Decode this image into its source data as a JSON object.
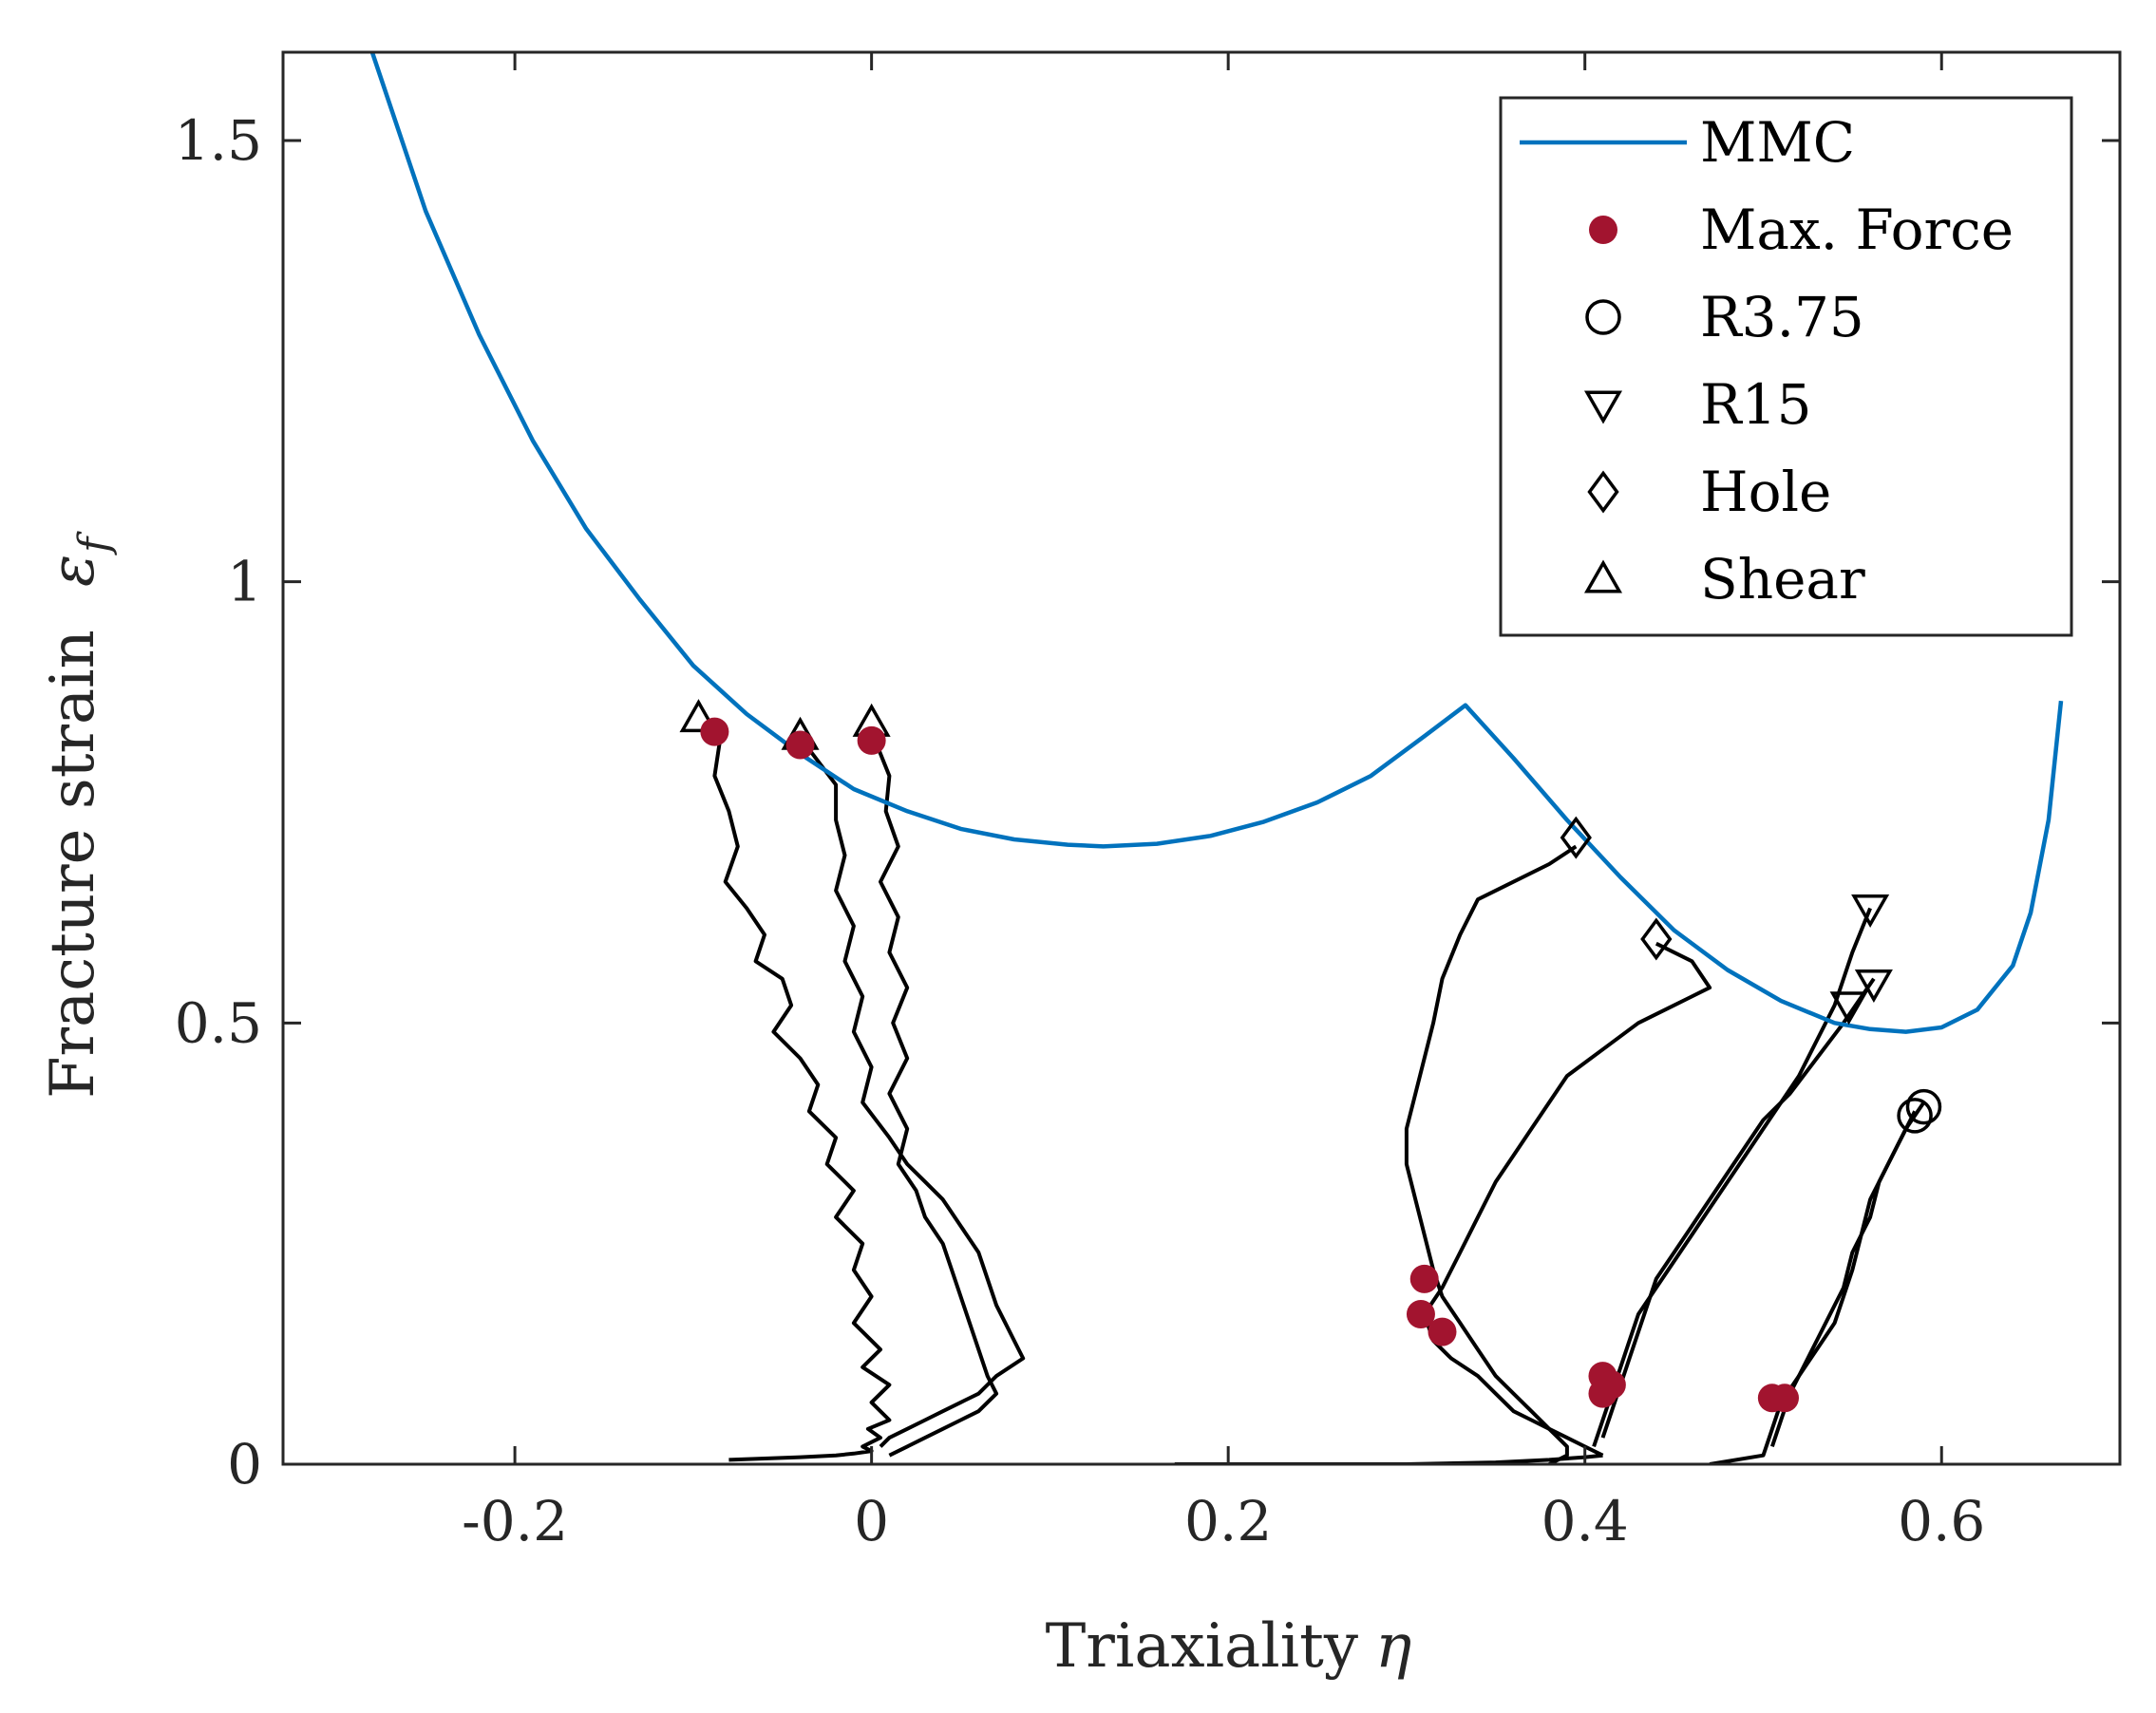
{
  "chart_data": {
    "type": "line",
    "title": "",
    "xlabel": "Triaxiality",
    "xlabel_symbol": "η",
    "ylabel": "Fracture strain",
    "ylabel_symbol": "ε",
    "ylabel_subscript": "f",
    "xlim": [
      -0.33,
      0.7
    ],
    "ylim": [
      0,
      1.6
    ],
    "xticks": [
      -0.2,
      0,
      0.2,
      0.4,
      0.6
    ],
    "xtick_labels": [
      "-0.2",
      "0",
      "0.2",
      "0.4",
      "0.6"
    ],
    "yticks": [
      0,
      0.5,
      1,
      1.5
    ],
    "ytick_labels": [
      "0",
      "0.5",
      "1",
      "1.5"
    ],
    "grid": false,
    "legend_position": "top-right",
    "colors": {
      "mmc": "#0072BD",
      "max_force": "#A2142F",
      "paths": "#000000",
      "axes": "#262626"
    },
    "legend": [
      {
        "label": "MMC",
        "marker": "line"
      },
      {
        "label": "Max. Force",
        "marker": "filled-circle"
      },
      {
        "label": "R3.75",
        "marker": "circle"
      },
      {
        "label": "R15",
        "marker": "triangle-down"
      },
      {
        "label": "Hole",
        "marker": "diamond"
      },
      {
        "label": "Shear",
        "marker": "triangle-up"
      }
    ],
    "mmc_curve": {
      "name": "MMC",
      "x": [
        -0.28,
        -0.25,
        -0.22,
        -0.19,
        -0.16,
        -0.13,
        -0.1,
        -0.07,
        -0.04,
        -0.01,
        0.02,
        0.05,
        0.08,
        0.11,
        0.13,
        0.16,
        0.19,
        0.22,
        0.25,
        0.28,
        0.31,
        0.333,
        0.36,
        0.39,
        0.42,
        0.45,
        0.48,
        0.51,
        0.54,
        0.56,
        0.58,
        0.6,
        0.62,
        0.64,
        0.65,
        0.66,
        0.667
      ],
      "y": [
        1.6,
        1.42,
        1.28,
        1.16,
        1.06,
        0.98,
        0.905,
        0.85,
        0.805,
        0.765,
        0.74,
        0.72,
        0.708,
        0.702,
        0.7,
        0.703,
        0.712,
        0.728,
        0.75,
        0.78,
        0.825,
        0.86,
        0.8,
        0.73,
        0.665,
        0.605,
        0.56,
        0.525,
        0.5,
        0.493,
        0.49,
        0.495,
        0.515,
        0.565,
        0.625,
        0.73,
        0.865
      ]
    },
    "paths": [
      {
        "name": "Shear 1",
        "x": [
          -0.085,
          -0.088,
          -0.08,
          -0.075,
          -0.082,
          -0.07,
          -0.06,
          -0.065,
          -0.05,
          -0.045,
          -0.055,
          -0.04,
          -0.03,
          -0.035,
          -0.02,
          -0.025,
          -0.01,
          -0.02,
          -0.005,
          -0.01,
          0.0,
          -0.01,
          0.005,
          -0.005,
          0.01,
          0.0,
          0.01,
          -0.002,
          0.005,
          -0.005,
          0.0,
          -0.01,
          -0.02,
          -0.04,
          -0.08
        ],
        "y": [
          0.82,
          0.78,
          0.74,
          0.7,
          0.66,
          0.63,
          0.6,
          0.57,
          0.55,
          0.52,
          0.49,
          0.46,
          0.43,
          0.4,
          0.37,
          0.34,
          0.31,
          0.28,
          0.25,
          0.22,
          0.19,
          0.16,
          0.13,
          0.11,
          0.09,
          0.07,
          0.05,
          0.04,
          0.03,
          0.02,
          0.015,
          0.012,
          0.01,
          0.008,
          0.005
        ]
      },
      {
        "name": "Shear 2",
        "x": [
          -0.035,
          -0.02,
          -0.02,
          -0.015,
          -0.02,
          -0.01,
          -0.015,
          -0.005,
          -0.01,
          0.0,
          -0.005,
          0.01,
          0.02,
          0.03,
          0.04,
          0.05,
          0.06,
          0.065,
          0.07,
          0.075,
          0.08,
          0.085,
          0.07,
          0.06,
          0.05,
          0.04,
          0.03,
          0.02,
          0.01,
          0.005
        ],
        "y": [
          0.81,
          0.77,
          0.73,
          0.69,
          0.65,
          0.61,
          0.57,
          0.53,
          0.49,
          0.45,
          0.41,
          0.37,
          0.34,
          0.32,
          0.3,
          0.27,
          0.24,
          0.21,
          0.18,
          0.16,
          0.14,
          0.12,
          0.1,
          0.08,
          0.07,
          0.06,
          0.05,
          0.04,
          0.03,
          0.02
        ]
      },
      {
        "name": "Shear 3",
        "x": [
          0.002,
          0.01,
          0.008,
          0.015,
          0.005,
          0.015,
          0.01,
          0.02,
          0.012,
          0.02,
          0.01,
          0.02,
          0.015,
          0.025,
          0.03,
          0.04,
          0.045,
          0.05,
          0.055,
          0.06,
          0.065,
          0.07,
          0.06,
          0.05,
          0.04,
          0.03,
          0.02,
          0.01
        ],
        "y": [
          0.82,
          0.78,
          0.74,
          0.7,
          0.66,
          0.62,
          0.58,
          0.54,
          0.5,
          0.46,
          0.42,
          0.38,
          0.34,
          0.31,
          0.28,
          0.25,
          0.22,
          0.19,
          0.16,
          0.13,
          0.1,
          0.08,
          0.06,
          0.05,
          0.04,
          0.03,
          0.02,
          0.01
        ]
      },
      {
        "name": "Hole 1",
        "x": [
          0.395,
          0.38,
          0.36,
          0.34,
          0.33,
          0.32,
          0.315,
          0.31,
          0.305,
          0.3,
          0.3,
          0.305,
          0.31,
          0.315,
          0.32,
          0.33,
          0.34,
          0.35,
          0.36,
          0.37,
          0.38,
          0.385,
          0.39,
          0.39,
          0.38
        ],
        "y": [
          0.7,
          0.68,
          0.66,
          0.64,
          0.6,
          0.55,
          0.5,
          0.46,
          0.42,
          0.38,
          0.34,
          0.3,
          0.26,
          0.22,
          0.19,
          0.16,
          0.13,
          0.1,
          0.08,
          0.06,
          0.04,
          0.03,
          0.02,
          0.01,
          0.0
        ]
      },
      {
        "name": "Hole 2",
        "x": [
          0.44,
          0.46,
          0.47,
          0.45,
          0.43,
          0.41,
          0.39,
          0.38,
          0.37,
          0.36,
          0.35,
          0.34,
          0.33,
          0.32,
          0.31,
          0.315,
          0.325,
          0.34,
          0.35,
          0.36,
          0.37,
          0.38,
          0.39,
          0.4,
          0.41
        ],
        "y": [
          0.59,
          0.57,
          0.54,
          0.52,
          0.5,
          0.47,
          0.44,
          0.41,
          0.38,
          0.35,
          0.32,
          0.28,
          0.24,
          0.2,
          0.17,
          0.14,
          0.12,
          0.1,
          0.08,
          0.06,
          0.05,
          0.04,
          0.03,
          0.02,
          0.01
        ]
      },
      {
        "name": "Hole 3",
        "x": [
          0.17,
          0.25,
          0.3,
          0.35,
          0.38,
          0.4,
          0.41
        ],
        "y": [
          0.0,
          0.0,
          0.0,
          0.002,
          0.005,
          0.008,
          0.01
        ]
      },
      {
        "name": "R15 1",
        "x": [
          0.56,
          0.55,
          0.54,
          0.53,
          0.52,
          0.51,
          0.5,
          0.49,
          0.48,
          0.47,
          0.46,
          0.45,
          0.44,
          0.43,
          0.425,
          0.42,
          0.415,
          0.41,
          0.405
        ],
        "y": [
          0.63,
          0.58,
          0.52,
          0.48,
          0.44,
          0.41,
          0.38,
          0.35,
          0.32,
          0.29,
          0.26,
          0.23,
          0.2,
          0.17,
          0.14,
          0.11,
          0.08,
          0.05,
          0.02
        ]
      },
      {
        "name": "R15 2",
        "x": [
          0.562,
          0.545,
          0.53,
          0.515,
          0.5,
          0.49,
          0.48,
          0.47,
          0.46,
          0.45,
          0.44,
          0.435,
          0.43,
          0.425,
          0.42,
          0.415,
          0.41
        ],
        "y": [
          0.55,
          0.5,
          0.46,
          0.42,
          0.39,
          0.36,
          0.33,
          0.3,
          0.27,
          0.24,
          0.21,
          0.18,
          0.15,
          0.12,
          0.09,
          0.06,
          0.03
        ]
      },
      {
        "name": "R3.75 1",
        "x": [
          0.59,
          0.58,
          0.57,
          0.56,
          0.555,
          0.55,
          0.545,
          0.54,
          0.53,
          0.52,
          0.51,
          0.505,
          0.5,
          0.47
        ],
        "y": [
          0.41,
          0.38,
          0.34,
          0.3,
          0.26,
          0.22,
          0.19,
          0.16,
          0.13,
          0.1,
          0.07,
          0.04,
          0.01,
          0.0
        ]
      },
      {
        "name": "R3.75 2",
        "x": [
          0.585,
          0.575,
          0.565,
          0.56,
          0.55,
          0.545,
          0.535,
          0.525,
          0.515,
          0.51,
          0.505
        ],
        "y": [
          0.4,
          0.36,
          0.32,
          0.28,
          0.24,
          0.2,
          0.16,
          0.12,
          0.08,
          0.05,
          0.02
        ]
      }
    ],
    "max_force": {
      "name": "Max. Force",
      "x": [
        -0.088,
        -0.04,
        0.0,
        0.31,
        0.308,
        0.32,
        0.41,
        0.415,
        0.41,
        0.505,
        0.512
      ],
      "y": [
        0.83,
        0.815,
        0.82,
        0.21,
        0.17,
        0.15,
        0.1,
        0.09,
        0.08,
        0.075,
        0.075
      ]
    },
    "shear_markers": {
      "name": "Shear",
      "x": [
        -0.097,
        -0.04,
        0.0
      ],
      "y": [
        0.845,
        0.825,
        0.84
      ]
    },
    "hole_markers": {
      "name": "Hole",
      "x": [
        0.395,
        0.44
      ],
      "y": [
        0.71,
        0.595
      ]
    },
    "r15_markers": {
      "name": "R15",
      "x": [
        0.56,
        0.562,
        0.548
      ],
      "y": [
        0.63,
        0.545,
        0.52
      ]
    },
    "r375_markers": {
      "name": "R3.75",
      "x": [
        0.59,
        0.585
      ],
      "y": [
        0.405,
        0.395
      ]
    }
  }
}
